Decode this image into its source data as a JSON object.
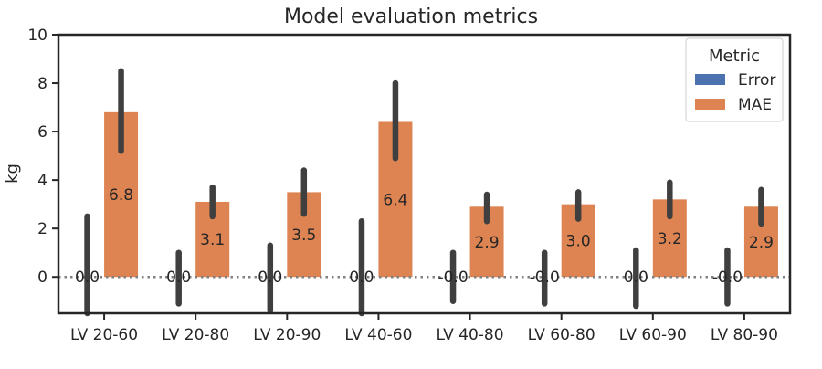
{
  "chart_data": {
    "type": "bar",
    "title": "Model evaluation metrics",
    "xlabel": "",
    "ylabel": "kg",
    "ylim": [
      -1.5,
      10
    ],
    "yticks": [
      0,
      2,
      4,
      6,
      8,
      10
    ],
    "categories": [
      "LV 20-60",
      "LV 20-80",
      "LV 20-90",
      "LV 40-60",
      "LV 40-80",
      "LV 60-80",
      "LV 60-90",
      "LV 80-90"
    ],
    "series": [
      {
        "name": "Error",
        "color": "#4c72b0",
        "values": [
          0.0,
          0.0,
          0.0,
          0.0,
          0.0,
          0.0,
          0.0,
          0.0
        ],
        "labels": [
          "0.0",
          "0.0",
          "0.0",
          "0.0",
          "-0.0",
          "-0.0",
          "0.0",
          "-0.0"
        ],
        "error_low": [
          -1.6,
          -1.1,
          -1.4,
          -1.6,
          -1.0,
          -1.1,
          -1.2,
          -1.1
        ],
        "error_high": [
          2.5,
          1.0,
          1.3,
          2.3,
          1.0,
          1.0,
          1.1,
          1.1
        ]
      },
      {
        "name": "MAE",
        "color": "#dd8452",
        "values": [
          6.8,
          3.1,
          3.5,
          6.4,
          2.9,
          3.0,
          3.2,
          2.9
        ],
        "labels": [
          "6.8",
          "3.1",
          "3.5",
          "6.4",
          "2.9",
          "3.0",
          "3.2",
          "2.9"
        ],
        "error_low": [
          5.2,
          2.5,
          2.6,
          4.9,
          2.3,
          2.4,
          2.5,
          2.2
        ],
        "error_high": [
          8.5,
          3.7,
          4.4,
          8.0,
          3.4,
          3.5,
          3.9,
          3.6
        ]
      }
    ],
    "reference_line": 0,
    "legend": {
      "title": "Metric",
      "position": "top-right"
    },
    "grid": false
  }
}
